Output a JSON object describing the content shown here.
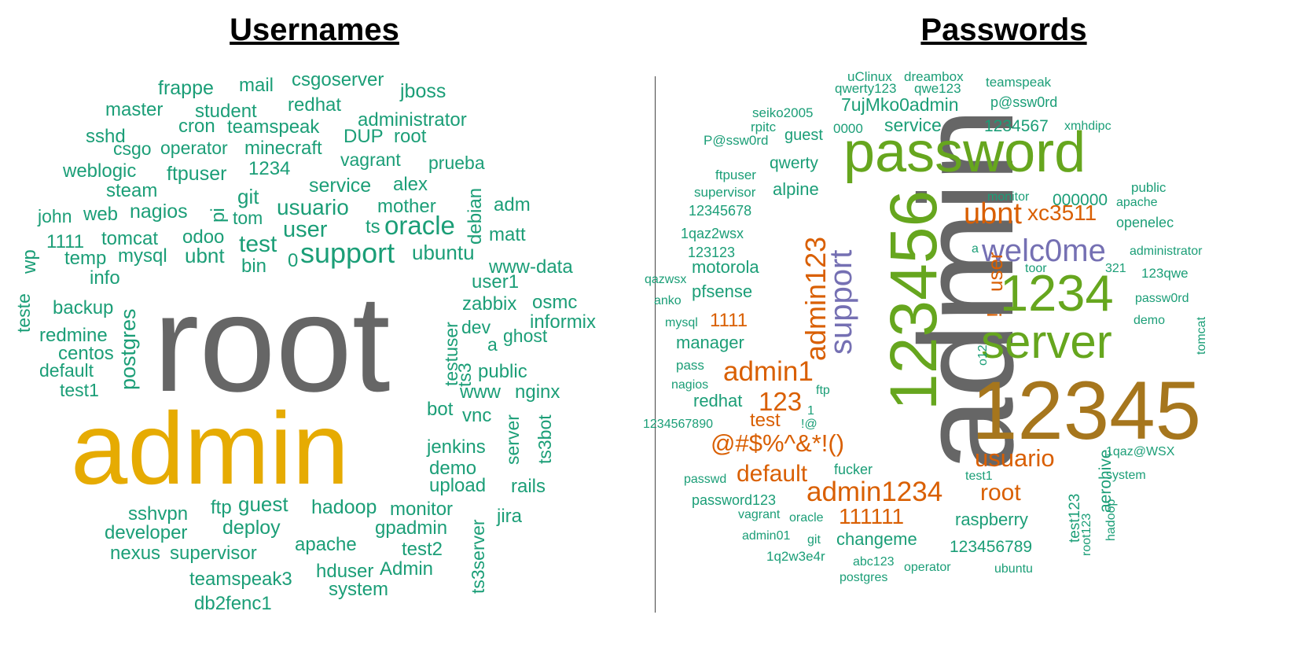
{
  "titles": {
    "left": "Usernames",
    "right": "Passwords"
  },
  "colors": {
    "teal": "#1b9e77",
    "orange": "#d95f02",
    "purple": "#7570b3",
    "green": "#66a61e",
    "mustard": "#e6ab02",
    "brown": "#a6761d",
    "gray": "#666666"
  },
  "usernames": [
    {
      "t": "root",
      "c": "gray",
      "s": 1
    },
    {
      "t": "admin",
      "c": "mustard",
      "s": 1
    },
    {
      "t": "support",
      "c": "teal",
      "s": 3
    },
    {
      "t": "oracle",
      "c": "teal",
      "s": 3
    },
    {
      "t": "test",
      "c": "teal",
      "s": 3
    },
    {
      "t": "user",
      "c": "teal",
      "s": 3
    },
    {
      "t": "usuario",
      "c": "teal",
      "s": 3
    },
    {
      "t": "ubuntu",
      "c": "teal",
      "s": 4
    },
    {
      "t": "postgres",
      "c": "teal",
      "s": 4
    },
    {
      "t": "guest",
      "c": "teal",
      "s": 4
    },
    {
      "t": "mysql",
      "c": "teal",
      "s": 4
    },
    {
      "t": "ubnt",
      "c": "teal",
      "s": 4
    },
    {
      "t": "nagios",
      "c": "teal",
      "s": 4
    },
    {
      "t": "git",
      "c": "teal",
      "s": 4
    },
    {
      "t": "service",
      "c": "teal",
      "s": 4
    },
    {
      "t": "alex",
      "c": "teal",
      "s": 4
    },
    {
      "t": "1234",
      "c": "teal",
      "s": 4
    },
    {
      "t": "hadoop",
      "c": "teal",
      "s": 4
    },
    {
      "t": "monitor",
      "c": "teal",
      "s": 4
    },
    {
      "t": "deploy",
      "c": "teal",
      "s": 4
    },
    {
      "t": "frappe",
      "c": "teal",
      "s": 5
    },
    {
      "t": "mail",
      "c": "teal",
      "s": 5
    },
    {
      "t": "csgoserver",
      "c": "teal",
      "s": 5
    },
    {
      "t": "jboss",
      "c": "teal",
      "s": 5
    },
    {
      "t": "master",
      "c": "teal",
      "s": 5
    },
    {
      "t": "student",
      "c": "teal",
      "s": 5
    },
    {
      "t": "redhat",
      "c": "teal",
      "s": 5
    },
    {
      "t": "administrator",
      "c": "teal",
      "s": 5
    },
    {
      "t": "sshd",
      "c": "teal",
      "s": 5
    },
    {
      "t": "cron",
      "c": "teal",
      "s": 5
    },
    {
      "t": "teamspeak",
      "c": "teal",
      "s": 5
    },
    {
      "t": "DUP",
      "c": "teal",
      "s": 5
    },
    {
      "t": "root",
      "c": "teal",
      "s": 5
    },
    {
      "t": "csgo",
      "c": "teal",
      "s": 5
    },
    {
      "t": "operator",
      "c": "teal",
      "s": 5
    },
    {
      "t": "minecraft",
      "c": "teal",
      "s": 5
    },
    {
      "t": "weblogic",
      "c": "teal",
      "s": 5
    },
    {
      "t": "ftpuser",
      "c": "teal",
      "s": 5
    },
    {
      "t": "vagrant",
      "c": "teal",
      "s": 5
    },
    {
      "t": "prueba",
      "c": "teal",
      "s": 5
    },
    {
      "t": "steam",
      "c": "teal",
      "s": 5
    },
    {
      "t": "john",
      "c": "teal",
      "s": 5
    },
    {
      "t": "web",
      "c": "teal",
      "s": 5
    },
    {
      "t": "pi",
      "c": "teal",
      "s": 5
    },
    {
      "t": "tom",
      "c": "teal",
      "s": 5
    },
    {
      "t": "mother",
      "c": "teal",
      "s": 5
    },
    {
      "t": "debian",
      "c": "teal",
      "s": 5
    },
    {
      "t": "adm",
      "c": "teal",
      "s": 5
    },
    {
      "t": "1111",
      "c": "teal",
      "s": 5
    },
    {
      "t": "tomcat",
      "c": "teal",
      "s": 5
    },
    {
      "t": "odoo",
      "c": "teal",
      "s": 5
    },
    {
      "t": "ts",
      "c": "teal",
      "s": 5
    },
    {
      "t": "matt",
      "c": "teal",
      "s": 5
    },
    {
      "t": "wp",
      "c": "teal",
      "s": 5
    },
    {
      "t": "temp",
      "c": "teal",
      "s": 5
    },
    {
      "t": "bin",
      "c": "teal",
      "s": 5
    },
    {
      "t": "0",
      "c": "teal",
      "s": 5
    },
    {
      "t": "www-data",
      "c": "teal",
      "s": 5
    },
    {
      "t": "info",
      "c": "teal",
      "s": 5
    },
    {
      "t": "user1",
      "c": "teal",
      "s": 5
    },
    {
      "t": "teste",
      "c": "teal",
      "s": 5
    },
    {
      "t": "backup",
      "c": "teal",
      "s": 5
    },
    {
      "t": "zabbix",
      "c": "teal",
      "s": 5
    },
    {
      "t": "osmc",
      "c": "teal",
      "s": 5
    },
    {
      "t": "informix",
      "c": "teal",
      "s": 5
    },
    {
      "t": "redmine",
      "c": "teal",
      "s": 5
    },
    {
      "t": "testuser",
      "c": "teal",
      "s": 5
    },
    {
      "t": "dev",
      "c": "teal",
      "s": 5
    },
    {
      "t": "a",
      "c": "teal",
      "s": 5
    },
    {
      "t": "ghost",
      "c": "teal",
      "s": 5
    },
    {
      "t": "centos",
      "c": "teal",
      "s": 5
    },
    {
      "t": "ts3",
      "c": "teal",
      "s": 5
    },
    {
      "t": "default",
      "c": "teal",
      "s": 5
    },
    {
      "t": "public",
      "c": "teal",
      "s": 5
    },
    {
      "t": "test1",
      "c": "teal",
      "s": 5
    },
    {
      "t": "www",
      "c": "teal",
      "s": 5
    },
    {
      "t": "nginx",
      "c": "teal",
      "s": 5
    },
    {
      "t": "bot",
      "c": "teal",
      "s": 5
    },
    {
      "t": "vnc",
      "c": "teal",
      "s": 5
    },
    {
      "t": "server",
      "c": "teal",
      "s": 5
    },
    {
      "t": "ts3bot",
      "c": "teal",
      "s": 5
    },
    {
      "t": "jenkins",
      "c": "teal",
      "s": 5
    },
    {
      "t": "demo",
      "c": "teal",
      "s": 5
    },
    {
      "t": "upload",
      "c": "teal",
      "s": 5
    },
    {
      "t": "rails",
      "c": "teal",
      "s": 5
    },
    {
      "t": "ftp",
      "c": "teal",
      "s": 5
    },
    {
      "t": "jira",
      "c": "teal",
      "s": 5
    },
    {
      "t": "sshvpn",
      "c": "teal",
      "s": 5
    },
    {
      "t": "gpadmin",
      "c": "teal",
      "s": 5
    },
    {
      "t": "developer",
      "c": "teal",
      "s": 5
    },
    {
      "t": "apache",
      "c": "teal",
      "s": 5
    },
    {
      "t": "ts3server",
      "c": "teal",
      "s": 5
    },
    {
      "t": "test2",
      "c": "teal",
      "s": 5
    },
    {
      "t": "nexus",
      "c": "teal",
      "s": 5
    },
    {
      "t": "supervisor",
      "c": "teal",
      "s": 5
    },
    {
      "t": "hduser",
      "c": "teal",
      "s": 5
    },
    {
      "t": "Admin",
      "c": "teal",
      "s": 5
    },
    {
      "t": "teamspeak3",
      "c": "teal",
      "s": 5
    },
    {
      "t": "system",
      "c": "teal",
      "s": 5
    },
    {
      "t": "db2fenc1",
      "c": "teal",
      "s": 5
    }
  ],
  "passwords": [
    {
      "t": "admin",
      "c": "gray",
      "s": 1
    },
    {
      "t": "12345",
      "c": "brown",
      "s": 1
    },
    {
      "t": "123456",
      "c": "green",
      "s": 1
    },
    {
      "t": "password",
      "c": "green",
      "s": 1
    },
    {
      "t": "server",
      "c": "green",
      "s": 2
    },
    {
      "t": "1234",
      "c": "green",
      "s": 2
    },
    {
      "t": "support",
      "c": "purple",
      "s": 2
    },
    {
      "t": "welc0me",
      "c": "purple",
      "s": 2
    },
    {
      "t": "admin123",
      "c": "orange",
      "s": 3
    },
    {
      "t": "ubnt",
      "c": "orange",
      "s": 3
    },
    {
      "t": "xc3511",
      "c": "orange",
      "s": 3
    },
    {
      "t": "admin1",
      "c": "orange",
      "s": 3
    },
    {
      "t": "admin1234",
      "c": "orange",
      "s": 3
    },
    {
      "t": "usuario",
      "c": "orange",
      "s": 3
    },
    {
      "t": "@#$%^&*!()",
      "c": "orange",
      "s": 3
    },
    {
      "t": "root",
      "c": "orange",
      "s": 3
    },
    {
      "t": "default",
      "c": "orange",
      "s": 3
    },
    {
      "t": "123",
      "c": "orange",
      "s": 3
    },
    {
      "t": "111111",
      "c": "orange",
      "s": 3
    },
    {
      "t": "user",
      "c": "orange",
      "s": 3
    },
    {
      "t": "test",
      "c": "orange",
      "s": 3
    },
    {
      "t": "1111",
      "c": "orange",
      "s": 3
    },
    {
      "t": "!",
      "c": "orange",
      "s": 3
    },
    {
      "t": "uClinux",
      "c": "teal",
      "s": 5
    },
    {
      "t": "dreambox",
      "c": "teal",
      "s": 5
    },
    {
      "t": "teamspeak",
      "c": "teal",
      "s": 5
    },
    {
      "t": "qwerty123",
      "c": "teal",
      "s": 5
    },
    {
      "t": "qwe123",
      "c": "teal",
      "s": 5
    },
    {
      "t": "7ujMko0admin",
      "c": "teal",
      "s": 4
    },
    {
      "t": "p@ssw0rd",
      "c": "teal",
      "s": 5
    },
    {
      "t": "seiko2005",
      "c": "teal",
      "s": 5
    },
    {
      "t": "service",
      "c": "teal",
      "s": 4
    },
    {
      "t": "1234567",
      "c": "teal",
      "s": 4
    },
    {
      "t": "rpitc",
      "c": "teal",
      "s": 5
    },
    {
      "t": "guest",
      "c": "teal",
      "s": 4
    },
    {
      "t": "0000",
      "c": "teal",
      "s": 5
    },
    {
      "t": "xmhdipc",
      "c": "teal",
      "s": 5
    },
    {
      "t": "P@ssw0rd",
      "c": "teal",
      "s": 5
    },
    {
      "t": "qwerty",
      "c": "teal",
      "s": 4
    },
    {
      "t": "ftpuser",
      "c": "teal",
      "s": 5
    },
    {
      "t": "alpine",
      "c": "teal",
      "s": 4
    },
    {
      "t": "supervisor",
      "c": "teal",
      "s": 5
    },
    {
      "t": "monitor",
      "c": "teal",
      "s": 5
    },
    {
      "t": "public",
      "c": "teal",
      "s": 5
    },
    {
      "t": "000000",
      "c": "teal",
      "s": 4
    },
    {
      "t": "apache",
      "c": "teal",
      "s": 5
    },
    {
      "t": "12345678",
      "c": "teal",
      "s": 5
    },
    {
      "t": "openelec",
      "c": "teal",
      "s": 5
    },
    {
      "t": "1qaz2wsx",
      "c": "teal",
      "s": 5
    },
    {
      "t": "a",
      "c": "teal",
      "s": 5
    },
    {
      "t": "administrator",
      "c": "teal",
      "s": 5
    },
    {
      "t": "123123",
      "c": "teal",
      "s": 5
    },
    {
      "t": "motorola",
      "c": "teal",
      "s": 4
    },
    {
      "t": "toor",
      "c": "teal",
      "s": 5
    },
    {
      "t": "321",
      "c": "teal",
      "s": 5
    },
    {
      "t": "qazwsx",
      "c": "teal",
      "s": 5
    },
    {
      "t": "123qwe",
      "c": "teal",
      "s": 5
    },
    {
      "t": "pfsense",
      "c": "teal",
      "s": 4
    },
    {
      "t": "anko",
      "c": "teal",
      "s": 5
    },
    {
      "t": "passw0rd",
      "c": "teal",
      "s": 5
    },
    {
      "t": "mysql",
      "c": "teal",
      "s": 5
    },
    {
      "t": "demo",
      "c": "teal",
      "s": 5
    },
    {
      "t": "tomcat",
      "c": "teal",
      "s": 5
    },
    {
      "t": "manager",
      "c": "teal",
      "s": 4
    },
    {
      "t": "pass",
      "c": "teal",
      "s": 5
    },
    {
      "t": "o12",
      "c": "teal",
      "s": 5
    },
    {
      "t": "nagios",
      "c": "teal",
      "s": 5
    },
    {
      "t": "redhat",
      "c": "teal",
      "s": 4
    },
    {
      "t": "ftp",
      "c": "teal",
      "s": 5
    },
    {
      "t": "1",
      "c": "teal",
      "s": 5
    },
    {
      "t": "1234567890",
      "c": "teal",
      "s": 5
    },
    {
      "t": "!@",
      "c": "teal",
      "s": 5
    },
    {
      "t": "1qaz@WSX",
      "c": "teal",
      "s": 5
    },
    {
      "t": "aerohive",
      "c": "teal",
      "s": 4
    },
    {
      "t": "fucker",
      "c": "teal",
      "s": 5
    },
    {
      "t": "test1",
      "c": "teal",
      "s": 5
    },
    {
      "t": "system",
      "c": "teal",
      "s": 5
    },
    {
      "t": "passwd",
      "c": "teal",
      "s": 5
    },
    {
      "t": "password123",
      "c": "teal",
      "s": 5
    },
    {
      "t": "test123",
      "c": "teal",
      "s": 5
    },
    {
      "t": "hadoop",
      "c": "teal",
      "s": 5
    },
    {
      "t": "vagrant",
      "c": "teal",
      "s": 5
    },
    {
      "t": "oracle",
      "c": "teal",
      "s": 5
    },
    {
      "t": "raspberry",
      "c": "teal",
      "s": 4
    },
    {
      "t": "root123",
      "c": "teal",
      "s": 5
    },
    {
      "t": "admin01",
      "c": "teal",
      "s": 5
    },
    {
      "t": "git",
      "c": "teal",
      "s": 5
    },
    {
      "t": "changeme",
      "c": "teal",
      "s": 4
    },
    {
      "t": "123456789",
      "c": "teal",
      "s": 4
    },
    {
      "t": "1q2w3e4r",
      "c": "teal",
      "s": 5
    },
    {
      "t": "abc123",
      "c": "teal",
      "s": 5
    },
    {
      "t": "operator",
      "c": "teal",
      "s": 5
    },
    {
      "t": "postgres",
      "c": "teal",
      "s": 5
    },
    {
      "t": "ubuntu",
      "c": "teal",
      "s": 5
    }
  ]
}
